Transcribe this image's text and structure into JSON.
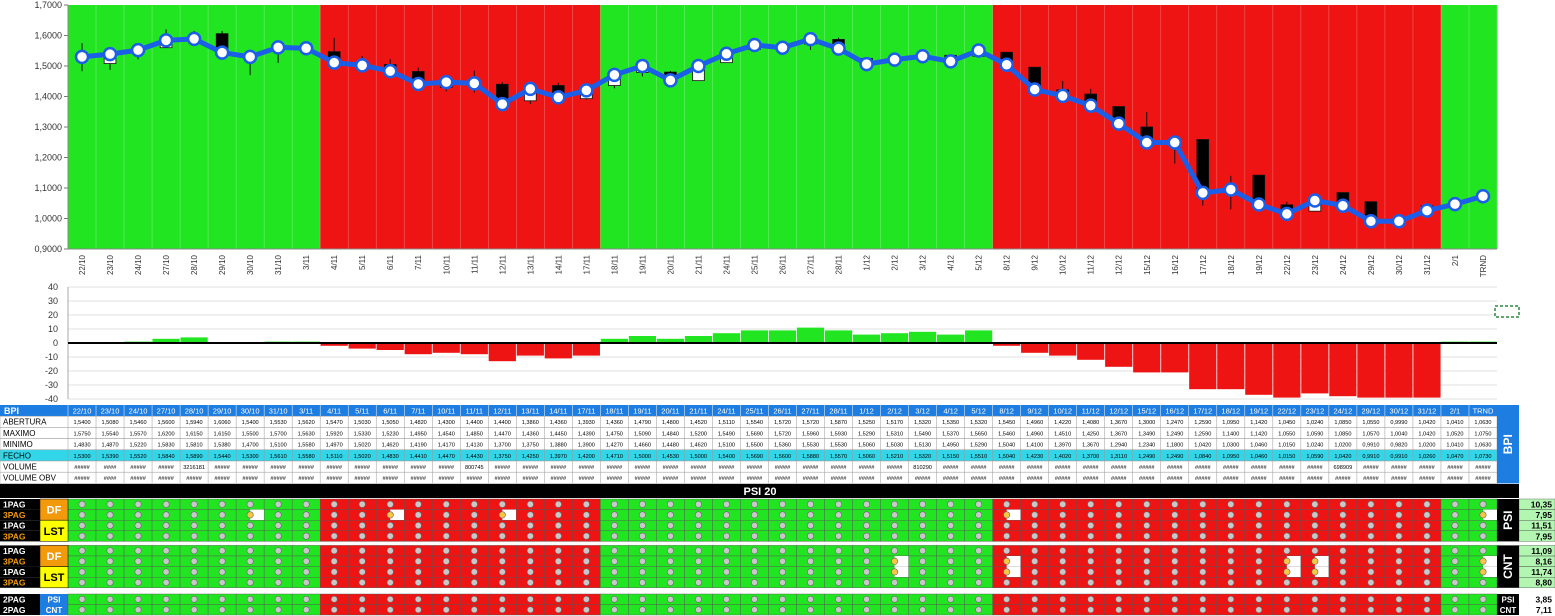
{
  "chart_data": {
    "type": "line",
    "categories": [
      "22/10",
      "23/10",
      "24/10",
      "27/10",
      "28/10",
      "29/10",
      "30/10",
      "31/10",
      "3/11",
      "4/11",
      "5/11",
      "6/11",
      "7/11",
      "10/11",
      "11/11",
      "12/11",
      "13/11",
      "14/11",
      "17/11",
      "18/11",
      "19/11",
      "20/11",
      "21/11",
      "24/11",
      "25/11",
      "26/11",
      "27/11",
      "28/11",
      "1/12",
      "2/12",
      "3/12",
      "4/12",
      "5/12",
      "8/12",
      "9/12",
      "10/12",
      "11/12",
      "12/12",
      "15/12",
      "16/12",
      "17/12",
      "18/12",
      "19/12",
      "22/12",
      "23/12",
      "24/12",
      "29/12",
      "30/12",
      "31/12",
      "2/1",
      "TRND"
    ],
    "regime": [
      "g",
      "g",
      "g",
      "g",
      "g",
      "g",
      "g",
      "g",
      "g",
      "r",
      "r",
      "r",
      "r",
      "r",
      "r",
      "r",
      "r",
      "r",
      "r",
      "g",
      "g",
      "g",
      "g",
      "g",
      "g",
      "g",
      "g",
      "g",
      "g",
      "g",
      "g",
      "g",
      "g",
      "r",
      "r",
      "r",
      "r",
      "r",
      "r",
      "r",
      "r",
      "r",
      "r",
      "r",
      "r",
      "r",
      "r",
      "r",
      "r",
      "g",
      "g"
    ],
    "series": [
      {
        "values": [
          1.53,
          1.539,
          1.552,
          1.584,
          1.589,
          1.544,
          1.53,
          1.561,
          1.558,
          1.511,
          1.502,
          1.483,
          1.441,
          1.447,
          1.443,
          1.375,
          1.425,
          1.397,
          1.42,
          1.471,
          1.5,
          1.453,
          1.5,
          1.54,
          1.569,
          1.56,
          1.588,
          1.557,
          1.506,
          1.521,
          1.532,
          1.515,
          1.551,
          1.504,
          1.423,
          1.402,
          1.37,
          1.311,
          1.249,
          1.249,
          1.084,
          1.095,
          1.046,
          1.015,
          1.059,
          1.042,
          0.991,
          0.991,
          1.026,
          1.047,
          1.073
        ]
      }
    ],
    "candles": {
      "open": [
        1.54,
        1.508,
        1.546,
        1.56,
        1.594,
        1.606,
        1.54,
        1.553,
        1.562,
        1.547,
        1.503,
        1.505,
        1.482,
        1.43,
        1.44,
        1.44,
        1.386,
        1.436,
        1.393,
        1.436,
        1.479,
        1.48,
        1.452,
        1.511,
        1.554,
        1.572,
        1.572,
        1.587,
        1.525,
        1.517,
        1.532,
        1.535,
        1.532,
        1.545,
        1.496,
        1.422,
        1.408,
        1.367,
        1.3,
        1.247,
        1.259,
        1.095,
        1.142,
        1.045,
        1.024,
        1.085,
        1.055,
        0.999,
        1.042,
        1.041,
        1.063
      ],
      "close": [
        1.53,
        1.539,
        1.552,
        1.584,
        1.589,
        1.544,
        1.53,
        1.561,
        1.558,
        1.511,
        1.502,
        1.483,
        1.441,
        1.447,
        1.443,
        1.375,
        1.425,
        1.397,
        1.42,
        1.471,
        1.5,
        1.453,
        1.5,
        1.54,
        1.569,
        1.56,
        1.588,
        1.557,
        1.506,
        1.521,
        1.532,
        1.515,
        1.551,
        1.504,
        1.423,
        1.402,
        1.37,
        1.311,
        1.249,
        1.249,
        1.084,
        1.095,
        1.046,
        1.015,
        1.059,
        1.042,
        0.991,
        0.991,
        1.026,
        1.047,
        1.073
      ],
      "high": [
        1.575,
        1.554,
        1.557,
        1.62,
        1.615,
        1.615,
        1.55,
        1.57,
        1.563,
        1.592,
        1.533,
        1.523,
        1.495,
        1.454,
        1.485,
        1.447,
        1.436,
        1.445,
        1.439,
        1.475,
        1.509,
        1.484,
        1.52,
        1.549,
        1.569,
        1.572,
        1.596,
        1.593,
        1.529,
        1.531,
        1.549,
        1.537,
        1.565,
        1.546,
        1.496,
        1.451,
        1.425,
        1.367,
        1.349,
        1.249,
        1.259,
        1.14,
        1.142,
        1.055,
        1.059,
        1.085,
        1.057,
        1.004,
        1.042,
        1.052,
        1.075
      ],
      "low": [
        1.483,
        1.487,
        1.522,
        1.583,
        1.581,
        1.538,
        1.47,
        1.51,
        1.558,
        1.497,
        1.502,
        1.462,
        1.419,
        1.417,
        1.413,
        1.37,
        1.375,
        1.388,
        1.39,
        1.427,
        1.466,
        1.448,
        1.462,
        1.51,
        1.55,
        1.536,
        1.553,
        1.553,
        1.506,
        1.503,
        1.513,
        1.495,
        1.529,
        1.504,
        1.41,
        1.397,
        1.367,
        1.294,
        1.234,
        1.18,
        1.042,
        1.03,
        1.046,
        1.015,
        1.024,
        1.02,
        0.991,
        0.982,
        1.02,
        1.041,
        1.063
      ]
    },
    "ylim": [
      0.9,
      1.7
    ],
    "yticks": [
      "0,9000",
      "1,0000",
      "1,1000",
      "1,2000",
      "1,3000",
      "1,4000",
      "1,5000",
      "1,6000",
      "1,7000"
    ],
    "osc": {
      "values": [
        0,
        0,
        1,
        3,
        4,
        0,
        0,
        1,
        1,
        -2,
        -4,
        -5,
        -8,
        -7,
        -8,
        -13,
        -9,
        -11,
        -9,
        3,
        5,
        3,
        5,
        7,
        9,
        9,
        11,
        9,
        6,
        7,
        8,
        6,
        9,
        -2,
        -7,
        -9,
        -12,
        -17,
        -21,
        -21,
        -33,
        -33,
        -37,
        -39,
        -36,
        -38,
        -39,
        -39,
        -39,
        1,
        1
      ],
      "ylim": [
        -40,
        40
      ],
      "yticks": [
        "-40",
        "-30",
        "-20",
        "-10",
        "0",
        "10",
        "20",
        "30",
        "40"
      ]
    },
    "table": {
      "section_label": "BPI",
      "rows": [
        {
          "label": "ABERTURA",
          "values": [
            "1,5400",
            "1,5080",
            "1,5460",
            "1,5600",
            "1,5940",
            "1,6060",
            "1,5400",
            "1,5530",
            "1,5620",
            "1,5470",
            "1,5030",
            "1,5050",
            "1,4820",
            "1,4300",
            "1,4400",
            "1,4400",
            "1,3860",
            "1,4360",
            "1,3930",
            "1,4360",
            "1,4790",
            "1,4800",
            "1,4520",
            "1,5110",
            "1,5540",
            "1,5720",
            "1,5720",
            "1,5870",
            "1,5250",
            "1,5170",
            "1,5320",
            "1,5350",
            "1,5320",
            "1,5450",
            "1,4960",
            "1,4220",
            "1,4080",
            "1,3670",
            "1,3000",
            "1,2470",
            "1,2590",
            "1,0950",
            "1,1420",
            "1,0450",
            "1,0240",
            "1,0850",
            "1,0550",
            "0,9990",
            "1,0420",
            "1,0410",
            "1,0630"
          ]
        },
        {
          "label": "MAXIMO",
          "values": [
            "1,5750",
            "1,5540",
            "1,5570",
            "1,6200",
            "1,6150",
            "1,6150",
            "1,5500",
            "1,5700",
            "1,5630",
            "1,5920",
            "1,5330",
            "1,5230",
            "1,4950",
            "1,4540",
            "1,4850",
            "1,4470",
            "1,4360",
            "1,4450",
            "1,4390",
            "1,4750",
            "1,5090",
            "1,4840",
            "1,5200",
            "1,5490",
            "1,5690",
            "1,5720",
            "1,5960",
            "1,5930",
            "1,5290",
            "1,5310",
            "1,5490",
            "1,5370",
            "1,5650",
            "1,5460",
            "1,4960",
            "1,4510",
            "1,4250",
            "1,3670",
            "1,3490",
            "1,2490",
            "1,2590",
            "1,1400",
            "1,1420",
            "1,0550",
            "1,0590",
            "1,0850",
            "1,0570",
            "1,0040",
            "1,0420",
            "1,0520",
            "1,0750"
          ]
        },
        {
          "label": "MINIMO",
          "values": [
            "1,4830",
            "1,4870",
            "1,5220",
            "1,5830",
            "1,5810",
            "1,5380",
            "1,4700",
            "1,5100",
            "1,5580",
            "1,4970",
            "1,5020",
            "1,4620",
            "1,4190",
            "1,4170",
            "1,4130",
            "1,3700",
            "1,3750",
            "1,3880",
            "1,3900",
            "1,4270",
            "1,4660",
            "1,4480",
            "1,4620",
            "1,5100",
            "1,5500",
            "1,5360",
            "1,5530",
            "1,5530",
            "1,5060",
            "1,5030",
            "1,5130",
            "1,4950",
            "1,5290",
            "1,5040",
            "1,4100",
            "1,3970",
            "1,3670",
            "1,2940",
            "1,2340",
            "1,1800",
            "1,0420",
            "1,0300",
            "1,0460",
            "1,0150",
            "1,0240",
            "1,0200",
            "0,9910",
            "0,9820",
            "1,0200",
            "1,0410",
            "1,0630"
          ]
        },
        {
          "label": "FECHO",
          "values": [
            "1,5300",
            "1,5390",
            "1,5520",
            "1,5840",
            "1,5890",
            "1,5440",
            "1,5300",
            "1,5610",
            "1,5580",
            "1,5110",
            "1,5020",
            "1,4830",
            "1,4410",
            "1,4470",
            "1,4430",
            "1,3750",
            "1,4250",
            "1,3970",
            "1,4200",
            "1,4710",
            "1,5000",
            "1,4530",
            "1,5000",
            "1,5400",
            "1,5690",
            "1,5600",
            "1,5880",
            "1,5570",
            "1,5060",
            "1,5210",
            "1,5320",
            "1,5150",
            "1,5510",
            "1,5040",
            "1,4230",
            "1,4020",
            "1,3700",
            "1,3110",
            "1,2490",
            "1,2490",
            "1,0840",
            "1,0950",
            "1,0460",
            "1,0150",
            "1,0590",
            "1,0420",
            "0,9910",
            "0,9910",
            "1,0260",
            "1,0470",
            "1,0730"
          ]
        },
        {
          "label": "VOLUME",
          "values": [
            "#####",
            "####",
            "#####",
            "#####",
            "3216181",
            "#####",
            "#####",
            "#####",
            "#####",
            "#####",
            "#####",
            "#####",
            "#####",
            "#####",
            "800745",
            "#####",
            "#####",
            "#####",
            "#####",
            "#####",
            "#####",
            "#####",
            "#####",
            "#####",
            "#####",
            "#####",
            "#####",
            "#####",
            "#####",
            "#####",
            "810290",
            "#####",
            "#####",
            "#####",
            "#####",
            "#####",
            "#####",
            "#####",
            "#####",
            "#####",
            "#####",
            "#####",
            "#####",
            "#####",
            "#####",
            "698909",
            "#####",
            "#####",
            "#####",
            "#####",
            "#####"
          ]
        },
        {
          "label": "VOLUME OBV",
          "values": [
            "#####",
            "####",
            "#####",
            "#####",
            "#####",
            "#####",
            "#####",
            "#####",
            "#####",
            "#####",
            "#####",
            "#####",
            "#####",
            "#####",
            "#####",
            "#####",
            "#####",
            "#####",
            "#####",
            "#####",
            "#####",
            "#####",
            "#####",
            "#####",
            "#####",
            "#####",
            "#####",
            "#####",
            "#####",
            "#####",
            "#####",
            "#####",
            "#####",
            "#####",
            "#####",
            "#####",
            "#####",
            "#####",
            "#####",
            "#####",
            "#####",
            "#####",
            "#####",
            "#####",
            "#####",
            "#####",
            "#####",
            "#####",
            "#####",
            "#####",
            "#####"
          ]
        }
      ]
    },
    "signals": {
      "header": "PSI 20",
      "group_labels": [
        "DF",
        "LST",
        "DF",
        "LST"
      ],
      "row_labels": [
        "1PAG",
        "3PAG",
        "1PAG",
        "3PAG",
        "1PAG",
        "3PAG",
        "1PAG",
        "3PAG"
      ],
      "side_labels": [
        "PSI",
        "CNT"
      ],
      "right_values": [
        "10,35",
        "7,95",
        "11,51",
        "7,95",
        "11,09",
        "8,16",
        "11,74",
        "8,80"
      ],
      "bottom_rows": [
        {
          "label": "2PAG",
          "tag": "PSI",
          "value": "3,85"
        },
        {
          "label": "2PAG",
          "tag": "CNT",
          "value": "7,11"
        }
      ],
      "yellow_marks": [
        [
          6,
          1
        ],
        [
          11,
          1
        ],
        [
          15,
          1
        ],
        [
          33,
          1
        ],
        [
          50,
          1
        ],
        [
          29,
          5
        ],
        [
          33,
          5
        ],
        [
          43,
          5
        ],
        [
          44,
          5
        ],
        [
          50,
          5
        ],
        [
          29,
          6
        ],
        [
          33,
          6
        ],
        [
          43,
          6
        ],
        [
          44,
          6
        ],
        [
          50,
          6
        ]
      ]
    }
  },
  "colors": {
    "green": "#22e522",
    "red": "#ee1414",
    "line": "#1b5ee8",
    "header_blue": "#1d7de0",
    "cyan": "#33d6e8",
    "orange": "#f29a0c",
    "yellow": "#ffff00"
  }
}
